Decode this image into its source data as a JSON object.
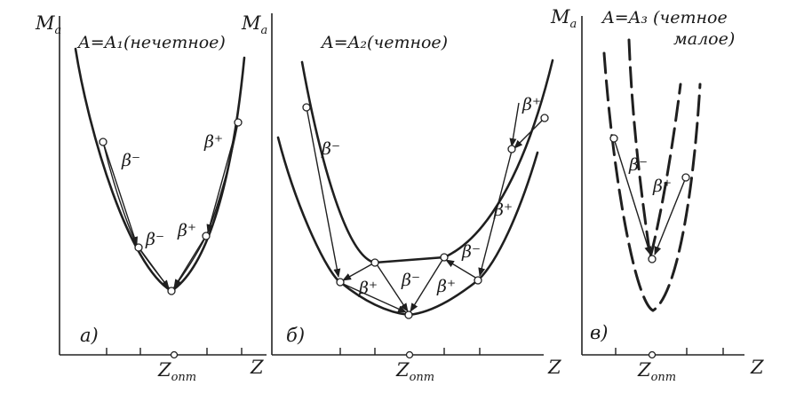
{
  "axes": {
    "y_symbol": "M",
    "y_subscript": "a",
    "x_symbol": "Z",
    "x_center_symbol": "Z",
    "x_center_subscript": "опт"
  },
  "panels": [
    {
      "id": "a",
      "letter": "а)",
      "title": "A=A₁(нечетное)",
      "arrow_labels": [
        "β⁻",
        "β⁺",
        "β⁻",
        "β⁺"
      ]
    },
    {
      "id": "b",
      "letter": "б)",
      "title": "A=A₂(четное)",
      "arrow_labels": [
        "β⁺",
        "β⁻",
        "β⁺",
        "β⁺",
        "β⁻",
        "β⁺",
        "β⁻"
      ]
    },
    {
      "id": "c",
      "letter": "в)",
      "title_line1": "A=A₃ (четное",
      "title_line2": "малое)",
      "arrow_labels": [
        "β⁻",
        "β⁺"
      ]
    }
  ]
}
